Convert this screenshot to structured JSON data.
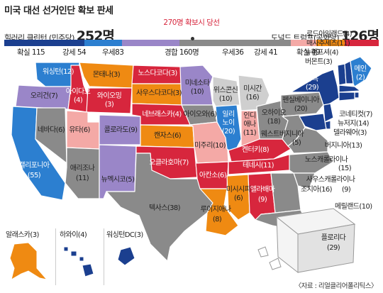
{
  "title": "미국 대선 선거인단 확보 판세",
  "threshold_label": "270명 확보시 당선",
  "clinton": {
    "label": "힐러리 클린턴 (민주당)",
    "total": "252명"
  },
  "trump": {
    "label": "도널드 트럼프(공화당)",
    "total": "126명"
  },
  "legend": {
    "dem_safe": "확실 115",
    "dem_strong": "강세 54",
    "dem_lean": "우세83",
    "tossup": "경합 160명",
    "rep_lean": "우세36",
    "rep_strong": "강세 41",
    "rep_safe": "확실 49"
  },
  "bar_values": {
    "dem_safe": 115,
    "dem_strong": 54,
    "dem_lean": 83,
    "tossup": 160,
    "rep_lean": 36,
    "rep_strong": 41,
    "rep_safe": 49
  },
  "colors": {
    "dem_safe": "#1b3f8f",
    "dem_strong": "#2c7fd0",
    "dem_lean": "#9a86c8",
    "tossup": "#8a8a8a",
    "tossup_light": "#cfcfcf",
    "rep_lean": "#f4a9a6",
    "rep_strong": "#ef8a12",
    "rep_safe": "#d7263d"
  },
  "states": {
    "wa": "워싱턴(12)",
    "or": "오리건(7)",
    "ca1": "캘리포니아",
    "ca2": "(55)",
    "nv": "네바다(6)",
    "id": "아이다호",
    "id2": "(4)",
    "mt": "몬태나(3)",
    "wy": "와이오밍",
    "wy2": "(3)",
    "ut": "유타(6)",
    "co": "콜로라도(9)",
    "az": "애리조나",
    "az2": "(11)",
    "nm": "뉴멕시코(5)",
    "nd": "노스다코다(3)",
    "sd": "사우스다코다(3)",
    "ne": "네브래스카(4)",
    "ks": "캔자스(6)",
    "ok": "오클라호마(7)",
    "tx": "텍사스(38)",
    "mn1": "미네소타",
    "mn2": "(10)",
    "ia": "아이오와(6)",
    "mo": "미주리(10)",
    "ar": "아칸소(6)",
    "la1": "루이지애나",
    "la2": "(8)",
    "wi1": "위스콘신",
    "wi2": "(10)",
    "il1": "일리",
    "il2": "노이",
    "il3": "(20)",
    "mi1": "미시간",
    "mi2": "(16)",
    "in1": "인디",
    "in2": "애나",
    "in3": "(11)",
    "oh": "오하이오",
    "oh2": "(18)",
    "ky": "켄터키(8)",
    "tn": "테네시(11)",
    "ms1": "미시시피",
    "ms2": "(6)",
    "al1": "앨라배마",
    "al2": "(9)",
    "pa": "펜실베이니아",
    "pa2": "(20)",
    "wv": "웨스트버지니아",
    "wv2": "(5)",
    "va": "버지니아(13)",
    "nc": "노스캐롤라이나",
    "nc2": "(15)",
    "sc": "사우스캐롤라이나",
    "sc2": "(9)",
    "ga": "조지아(16)",
    "fl": "플로리다",
    "fl2": "(29)",
    "ny": "뉴욕",
    "ny2": "(29)",
    "vt": "버몬트(3)",
    "nh": "뉴햄프셔(4)",
    "me": "메인",
    "me2": "(2)",
    "ma": "매사추세츠(11)",
    "ri": "로드아일랜드(4)",
    "ct": "코네티컷(7)",
    "nj": "뉴저지(14)",
    "de": "델라웨어(3)",
    "md": "메릴랜드(10)"
  },
  "insets": {
    "ak": "알래스카(3)",
    "hi": "하와이(4)",
    "dc": "워싱턴DC(3)"
  },
  "source": "〈자료 : 리얼클리어폴리틱스〉"
}
